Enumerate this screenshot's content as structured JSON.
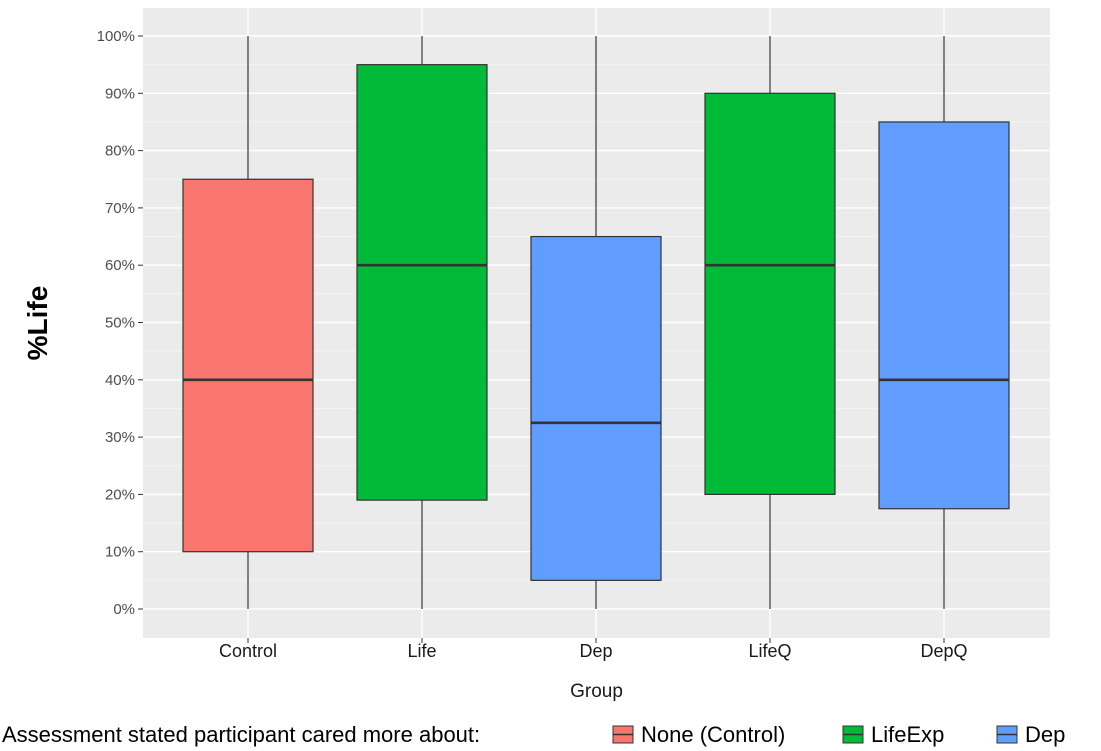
{
  "chart_data": {
    "type": "boxplot",
    "xlabel": "Group",
    "ylabel": "%Life",
    "ylim": [
      0,
      100
    ],
    "y_ticks": [
      "0%",
      "10%",
      "20%",
      "30%",
      "40%",
      "50%",
      "60%",
      "70%",
      "80%",
      "90%",
      "100%"
    ],
    "y_tick_values": [
      0,
      10,
      20,
      30,
      40,
      50,
      60,
      70,
      80,
      90,
      100
    ],
    "grid": true,
    "legend": {
      "title": "Assessment stated participant cared more about:",
      "placement": "bottom",
      "entries": [
        {
          "label": "None (Control)",
          "color": "#F8766D"
        },
        {
          "label": "LifeExp",
          "color": "#00BA38"
        },
        {
          "label": "Dep",
          "color": "#619CFF"
        }
      ]
    },
    "categories": [
      "Control",
      "Life",
      "Dep",
      "LifeQ",
      "DepQ"
    ],
    "boxes": [
      {
        "category": "Control",
        "min": 0,
        "q1": 10,
        "median": 40,
        "q3": 75,
        "max": 100,
        "color": "#F8766D"
      },
      {
        "category": "Life",
        "min": 0,
        "q1": 19,
        "median": 60,
        "q3": 95,
        "max": 100,
        "color": "#00BA38"
      },
      {
        "category": "Dep",
        "min": 0,
        "q1": 5,
        "median": 32.5,
        "q3": 65,
        "max": 100,
        "color": "#619CFF"
      },
      {
        "category": "LifeQ",
        "min": 0,
        "q1": 20,
        "median": 60,
        "q3": 90,
        "max": 100,
        "color": "#00BA38"
      },
      {
        "category": "DepQ",
        "min": 0,
        "q1": 17.5,
        "median": 40,
        "q3": 85,
        "max": 100,
        "color": "#619CFF"
      }
    ]
  }
}
